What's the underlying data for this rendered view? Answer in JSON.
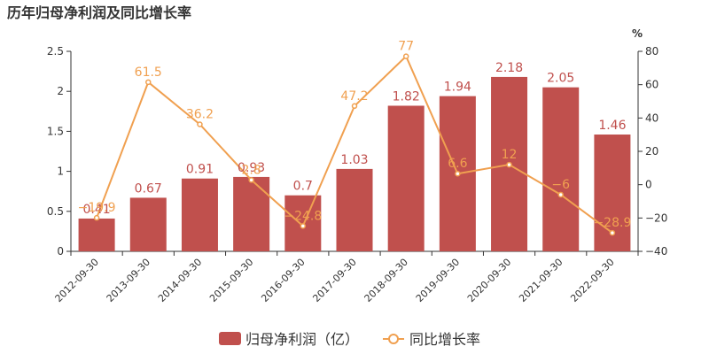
{
  "chart_data": {
    "type": "bar",
    "title": "历年归母净利润及同比增长率",
    "categories": [
      "2012-09-30",
      "2013-09-30",
      "2014-09-30",
      "2015-09-30",
      "2016-09-30",
      "2017-09-30",
      "2018-09-30",
      "2019-09-30",
      "2020-09-30",
      "2021-09-30",
      "2022-09-30"
    ],
    "series": [
      {
        "name": "归母净利润（亿）",
        "type": "bar",
        "axis": "left",
        "color": "#c0504d",
        "values": [
          0.41,
          0.67,
          0.91,
          0.93,
          0.7,
          1.03,
          1.82,
          1.94,
          2.18,
          2.05,
          1.46
        ],
        "labels": [
          "0.41",
          "0.67",
          "0.91",
          "0.93",
          "0.7",
          "1.03",
          "1.82",
          "1.94",
          "2.18",
          "2.05",
          "1.46"
        ]
      },
      {
        "name": "同比增长率",
        "type": "line",
        "axis": "right",
        "color": "#f0a050",
        "values": [
          -19.9,
          61.5,
          36.2,
          2.8,
          -24.8,
          47.2,
          77,
          6.6,
          12,
          -6,
          -28.9
        ],
        "labels": [
          "-19.9",
          "61.5",
          "36.2",
          "2.8",
          "-24.8",
          "47.2",
          "77",
          "6.6",
          "12",
          "-6",
          "-28.9"
        ]
      }
    ],
    "left_axis": {
      "ylim": [
        0,
        2.5
      ],
      "ticks": [
        "0",
        "0.5",
        "1",
        "1.5",
        "2",
        "2.5"
      ]
    },
    "right_axis": {
      "ylim": [
        -40,
        80
      ],
      "ticks": [
        "-40",
        "-20",
        "0",
        "20",
        "40",
        "60",
        "80"
      ],
      "unit": "%"
    },
    "legend_position": "bottom",
    "grid": false
  }
}
